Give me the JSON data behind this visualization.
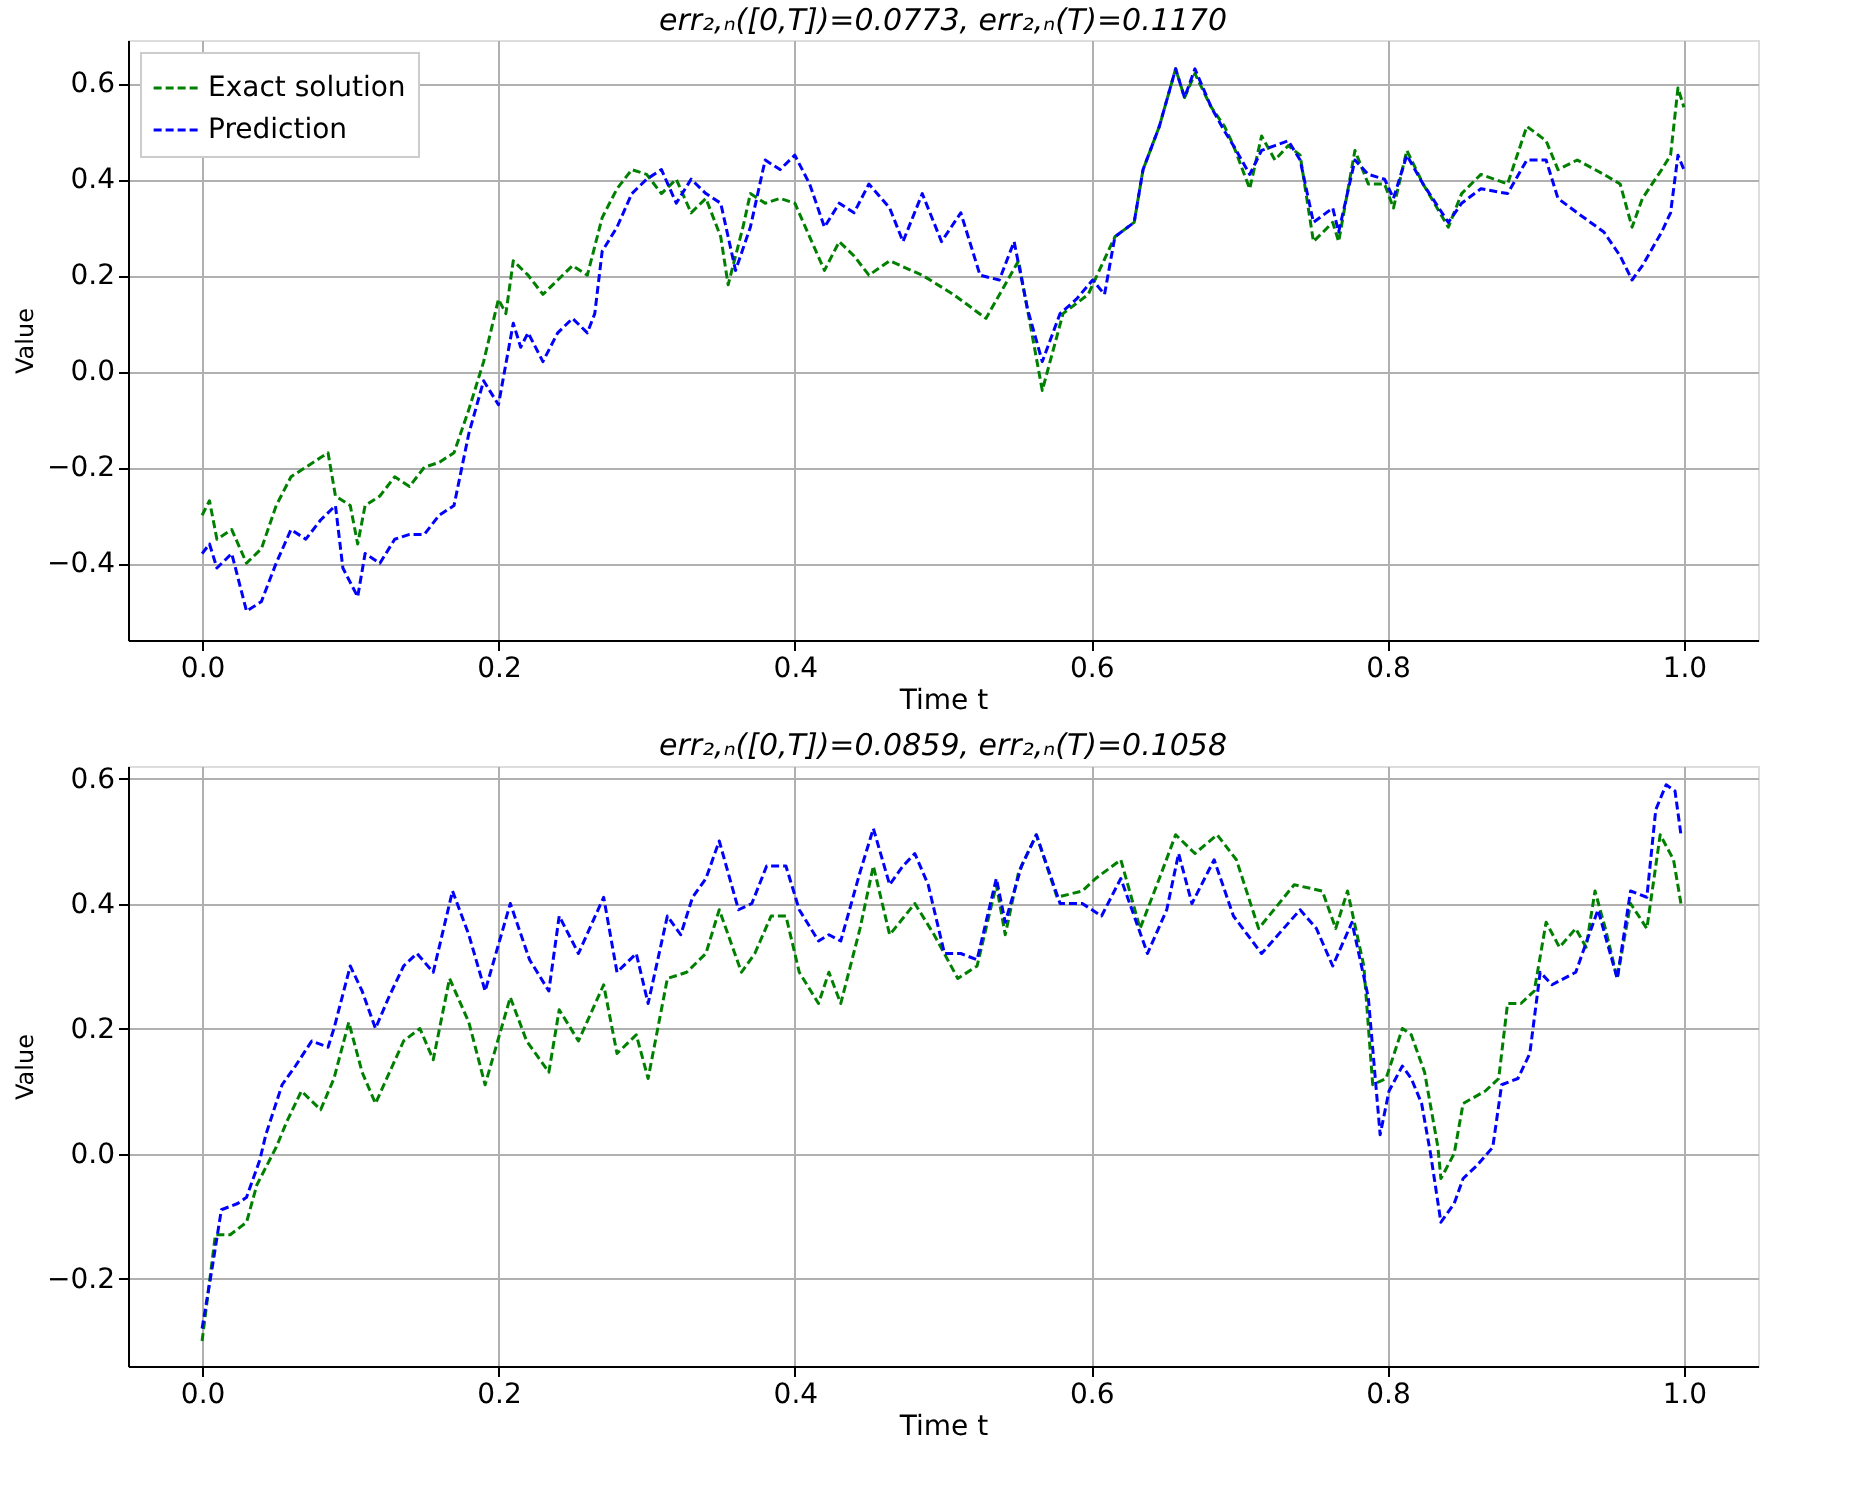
{
  "chart_data": [
    {
      "type": "line",
      "title": "err₂,ₙ([0,T])=0.0773, err₂,ₙ(T)=0.1170",
      "xlabel": "Time t",
      "ylabel": "Value",
      "xlim": [
        -0.05,
        1.05
      ],
      "ylim": [
        -0.56,
        0.69
      ],
      "xticks": [
        {
          "value": 0,
          "label": "0.0"
        },
        {
          "value": 0.2,
          "label": "0.2"
        },
        {
          "value": 0.4,
          "label": "0.4"
        },
        {
          "value": 0.6,
          "label": "0.6"
        },
        {
          "value": 0.8,
          "label": "0.8"
        },
        {
          "value": 1,
          "label": "1.0"
        }
      ],
      "yticks": [
        {
          "value": -0.4,
          "label": "−0.4"
        },
        {
          "value": -0.2,
          "label": "−0.2"
        },
        {
          "value": 0,
          "label": "0.0"
        },
        {
          "value": 0.2,
          "label": "0.2"
        },
        {
          "value": 0.4,
          "label": "0.4"
        },
        {
          "value": 0.6,
          "label": "0.6"
        }
      ],
      "grid": true,
      "legend": "top left",
      "line_style": "dashed",
      "marker": "none",
      "series": [
        {
          "name": "Exact solution",
          "color": "#008000",
          "x": [
            0,
            0.005,
            0.01,
            0.02,
            0.03,
            0.04,
            0.05,
            0.06,
            0.07,
            0.08,
            0.085,
            0.09,
            0.1,
            0.105,
            0.11,
            0.12,
            0.13,
            0.14,
            0.15,
            0.16,
            0.17,
            0.18,
            0.19,
            0.2,
            0.205,
            0.21,
            0.22,
            0.23,
            0.24,
            0.25,
            0.26,
            0.27,
            0.28,
            0.29,
            0.3,
            0.31,
            0.32,
            0.33,
            0.34,
            0.35,
            0.355,
            0.365,
            0.37,
            0.38,
            0.39,
            0.4,
            0.41,
            0.42,
            0.43,
            0.44,
            0.45,
            0.464,
            0.486,
            0.507,
            0.529,
            0.551,
            0.567,
            0.581,
            0.598,
            0.616,
            0.629,
            0.635,
            0.646,
            0.657,
            0.663,
            0.67,
            0.681,
            0.69,
            0.696,
            0.707,
            0.715,
            0.724,
            0.733,
            0.741,
            0.75,
            0.763,
            0.767,
            0.778,
            0.787,
            0.798,
            0.804,
            0.813,
            0.824,
            0.841,
            0.85,
            0.863,
            0.881,
            0.894,
            0.907,
            0.915,
            0.928,
            0.946,
            0.957,
            0.965,
            0.972,
            0.985,
            0.991,
            0.996,
            1.0
          ],
          "values": [
            -0.3,
            -0.27,
            -0.35,
            -0.33,
            -0.4,
            -0.37,
            -0.28,
            -0.22,
            -0.2,
            -0.18,
            -0.17,
            -0.26,
            -0.28,
            -0.36,
            -0.28,
            -0.26,
            -0.22,
            -0.24,
            -0.2,
            -0.19,
            -0.17,
            -0.08,
            0.02,
            0.15,
            0.12,
            0.23,
            0.2,
            0.16,
            0.19,
            0.22,
            0.2,
            0.32,
            0.38,
            0.42,
            0.41,
            0.37,
            0.4,
            0.33,
            0.36,
            0.28,
            0.18,
            0.3,
            0.37,
            0.35,
            0.36,
            0.35,
            0.28,
            0.21,
            0.27,
            0.24,
            0.2,
            0.23,
            0.2,
            0.16,
            0.11,
            0.23,
            -0.04,
            0.12,
            0.16,
            0.28,
            0.31,
            0.42,
            0.51,
            0.63,
            0.57,
            0.62,
            0.55,
            0.51,
            0.47,
            0.38,
            0.49,
            0.44,
            0.47,
            0.45,
            0.27,
            0.31,
            0.27,
            0.46,
            0.39,
            0.39,
            0.34,
            0.46,
            0.39,
            0.3,
            0.37,
            0.41,
            0.39,
            0.51,
            0.48,
            0.42,
            0.44,
            0.41,
            0.39,
            0.3,
            0.36,
            0.42,
            0.45,
            0.59,
            0.55
          ]
        },
        {
          "name": "Prediction",
          "color": "#0000ff",
          "x": [
            0,
            0.005,
            0.01,
            0.02,
            0.03,
            0.04,
            0.05,
            0.06,
            0.07,
            0.08,
            0.09,
            0.095,
            0.105,
            0.11,
            0.12,
            0.13,
            0.14,
            0.15,
            0.16,
            0.17,
            0.18,
            0.19,
            0.2,
            0.21,
            0.215,
            0.22,
            0.23,
            0.24,
            0.25,
            0.26,
            0.265,
            0.27,
            0.28,
            0.29,
            0.3,
            0.31,
            0.32,
            0.33,
            0.34,
            0.35,
            0.36,
            0.37,
            0.38,
            0.39,
            0.4,
            0.41,
            0.42,
            0.43,
            0.44,
            0.45,
            0.464,
            0.473,
            0.486,
            0.499,
            0.512,
            0.525,
            0.538,
            0.548,
            0.557,
            0.567,
            0.579,
            0.59,
            0.601,
            0.609,
            0.616,
            0.629,
            0.635,
            0.646,
            0.657,
            0.663,
            0.67,
            0.681,
            0.69,
            0.696,
            0.707,
            0.715,
            0.724,
            0.733,
            0.741,
            0.75,
            0.763,
            0.767,
            0.778,
            0.787,
            0.798,
            0.804,
            0.813,
            0.824,
            0.841,
            0.85,
            0.863,
            0.881,
            0.894,
            0.907,
            0.915,
            0.928,
            0.946,
            0.957,
            0.965,
            0.972,
            0.985,
            0.991,
            0.996,
            1.0
          ],
          "values": [
            -0.38,
            -0.36,
            -0.41,
            -0.38,
            -0.5,
            -0.48,
            -0.4,
            -0.33,
            -0.35,
            -0.31,
            -0.28,
            -0.41,
            -0.47,
            -0.38,
            -0.4,
            -0.35,
            -0.34,
            -0.34,
            -0.3,
            -0.28,
            -0.13,
            -0.02,
            -0.07,
            0.1,
            0.05,
            0.08,
            0.02,
            0.08,
            0.11,
            0.08,
            0.12,
            0.25,
            0.3,
            0.37,
            0.4,
            0.42,
            0.35,
            0.4,
            0.37,
            0.35,
            0.21,
            0.3,
            0.44,
            0.42,
            0.45,
            0.39,
            0.3,
            0.35,
            0.33,
            0.39,
            0.34,
            0.27,
            0.37,
            0.27,
            0.33,
            0.2,
            0.19,
            0.27,
            0.13,
            0.02,
            0.12,
            0.15,
            0.19,
            0.16,
            0.28,
            0.31,
            0.42,
            0.51,
            0.63,
            0.57,
            0.63,
            0.55,
            0.5,
            0.47,
            0.41,
            0.46,
            0.47,
            0.48,
            0.44,
            0.31,
            0.34,
            0.29,
            0.44,
            0.41,
            0.4,
            0.36,
            0.45,
            0.39,
            0.31,
            0.35,
            0.38,
            0.37,
            0.44,
            0.44,
            0.36,
            0.33,
            0.29,
            0.24,
            0.19,
            0.22,
            0.29,
            0.33,
            0.45,
            0.42
          ]
        }
      ]
    },
    {
      "type": "line",
      "title": "err₂,ₙ([0,T])=0.0859, err₂,ₙ(T)=0.1058",
      "xlabel": "Time t",
      "ylabel": "Value",
      "xlim": [
        -0.05,
        1.05
      ],
      "ylim": [
        -0.34,
        0.62
      ],
      "xticks": [
        {
          "value": 0,
          "label": "0.0"
        },
        {
          "value": 0.2,
          "label": "0.2"
        },
        {
          "value": 0.4,
          "label": "0.4"
        },
        {
          "value": 0.6,
          "label": "0.6"
        },
        {
          "value": 0.8,
          "label": "0.8"
        },
        {
          "value": 1,
          "label": "1.0"
        }
      ],
      "yticks": [
        {
          "value": -0.2,
          "label": "−0.2"
        },
        {
          "value": 0,
          "label": "0.0"
        },
        {
          "value": 0.2,
          "label": "0.2"
        },
        {
          "value": 0.4,
          "label": "0.4"
        },
        {
          "value": 0.6,
          "label": "0.6"
        }
      ],
      "grid": true,
      "legend": "top left",
      "line_style": "dashed",
      "marker": "none",
      "series": [
        {
          "name": "Exact solution",
          "color": "#008000",
          "x": [
            0,
            0.009,
            0.019,
            0.03,
            0.037,
            0.05,
            0.057,
            0.067,
            0.08,
            0.089,
            0.099,
            0.108,
            0.117,
            0.136,
            0.147,
            0.156,
            0.167,
            0.18,
            0.191,
            0.208,
            0.219,
            0.234,
            0.241,
            0.254,
            0.271,
            0.28,
            0.293,
            0.301,
            0.314,
            0.327,
            0.34,
            0.349,
            0.364,
            0.373,
            0.384,
            0.394,
            0.403,
            0.416,
            0.423,
            0.431,
            0.444,
            0.453,
            0.464,
            0.481,
            0.494,
            0.51,
            0.523,
            0.536,
            0.542,
            0.551,
            0.563,
            0.577,
            0.594,
            0.603,
            0.62,
            0.633,
            0.646,
            0.657,
            0.67,
            0.685,
            0.698,
            0.713,
            0.737,
            0.756,
            0.765,
            0.773,
            0.784,
            0.79,
            0.799,
            0.81,
            0.816,
            0.825,
            0.834,
            0.836,
            0.845,
            0.851,
            0.866,
            0.875,
            0.881,
            0.89,
            0.899,
            0.907,
            0.916,
            0.927,
            0.934,
            0.94,
            0.947,
            0.955,
            0.964,
            0.975,
            0.984,
            0.993,
            0.998
          ],
          "values": [
            -0.3,
            -0.13,
            -0.13,
            -0.11,
            -0.05,
            0.01,
            0.05,
            0.1,
            0.07,
            0.12,
            0.21,
            0.13,
            0.08,
            0.18,
            0.2,
            0.15,
            0.28,
            0.21,
            0.11,
            0.25,
            0.18,
            0.13,
            0.23,
            0.18,
            0.27,
            0.16,
            0.19,
            0.12,
            0.28,
            0.29,
            0.32,
            0.39,
            0.29,
            0.32,
            0.38,
            0.38,
            0.29,
            0.24,
            0.29,
            0.24,
            0.36,
            0.46,
            0.35,
            0.4,
            0.35,
            0.28,
            0.3,
            0.43,
            0.35,
            0.45,
            0.51,
            0.41,
            0.42,
            0.44,
            0.47,
            0.36,
            0.44,
            0.51,
            0.48,
            0.51,
            0.47,
            0.36,
            0.43,
            0.42,
            0.36,
            0.42,
            0.3,
            0.11,
            0.12,
            0.2,
            0.19,
            0.13,
            0.01,
            -0.04,
            0.0,
            0.08,
            0.1,
            0.12,
            0.24,
            0.24,
            0.26,
            0.37,
            0.33,
            0.36,
            0.33,
            0.42,
            0.36,
            0.28,
            0.4,
            0.36,
            0.51,
            0.47,
            0.4
          ]
        },
        {
          "name": "Prediction",
          "color": "#0000ff",
          "x": [
            0,
            0.007,
            0.013,
            0.024,
            0.03,
            0.039,
            0.043,
            0.054,
            0.063,
            0.074,
            0.085,
            0.089,
            0.1,
            0.108,
            0.117,
            0.126,
            0.136,
            0.145,
            0.156,
            0.169,
            0.18,
            0.191,
            0.208,
            0.221,
            0.234,
            0.241,
            0.254,
            0.271,
            0.28,
            0.293,
            0.301,
            0.314,
            0.323,
            0.331,
            0.34,
            0.349,
            0.362,
            0.371,
            0.381,
            0.394,
            0.403,
            0.416,
            0.423,
            0.431,
            0.444,
            0.453,
            0.464,
            0.473,
            0.481,
            0.49,
            0.501,
            0.512,
            0.523,
            0.536,
            0.542,
            0.553,
            0.563,
            0.579,
            0.594,
            0.607,
            0.62,
            0.638,
            0.651,
            0.659,
            0.668,
            0.683,
            0.696,
            0.715,
            0.741,
            0.752,
            0.763,
            0.776,
            0.787,
            0.795,
            0.801,
            0.81,
            0.816,
            0.823,
            0.829,
            0.836,
            0.845,
            0.851,
            0.86,
            0.871,
            0.877,
            0.888,
            0.896,
            0.903,
            0.911,
            0.927,
            0.936,
            0.942,
            0.955,
            0.964,
            0.975,
            0.981,
            0.988,
            0.994,
            0.998
          ],
          "values": [
            -0.28,
            -0.18,
            -0.09,
            -0.08,
            -0.07,
            -0.01,
            0.03,
            0.11,
            0.14,
            0.18,
            0.17,
            0.2,
            0.3,
            0.26,
            0.2,
            0.25,
            0.3,
            0.32,
            0.29,
            0.42,
            0.35,
            0.26,
            0.4,
            0.31,
            0.26,
            0.38,
            0.32,
            0.41,
            0.29,
            0.32,
            0.24,
            0.38,
            0.35,
            0.41,
            0.44,
            0.5,
            0.39,
            0.4,
            0.46,
            0.46,
            0.39,
            0.34,
            0.35,
            0.34,
            0.45,
            0.52,
            0.43,
            0.46,
            0.48,
            0.43,
            0.32,
            0.32,
            0.31,
            0.44,
            0.37,
            0.46,
            0.51,
            0.4,
            0.4,
            0.38,
            0.44,
            0.32,
            0.39,
            0.48,
            0.4,
            0.47,
            0.38,
            0.32,
            0.39,
            0.36,
            0.3,
            0.37,
            0.25,
            0.03,
            0.1,
            0.14,
            0.12,
            0.08,
            0.0,
            -0.11,
            -0.08,
            -0.04,
            -0.02,
            0.01,
            0.11,
            0.12,
            0.16,
            0.29,
            0.27,
            0.29,
            0.35,
            0.39,
            0.28,
            0.42,
            0.41,
            0.55,
            0.59,
            0.58,
            0.51
          ]
        }
      ]
    }
  ]
}
